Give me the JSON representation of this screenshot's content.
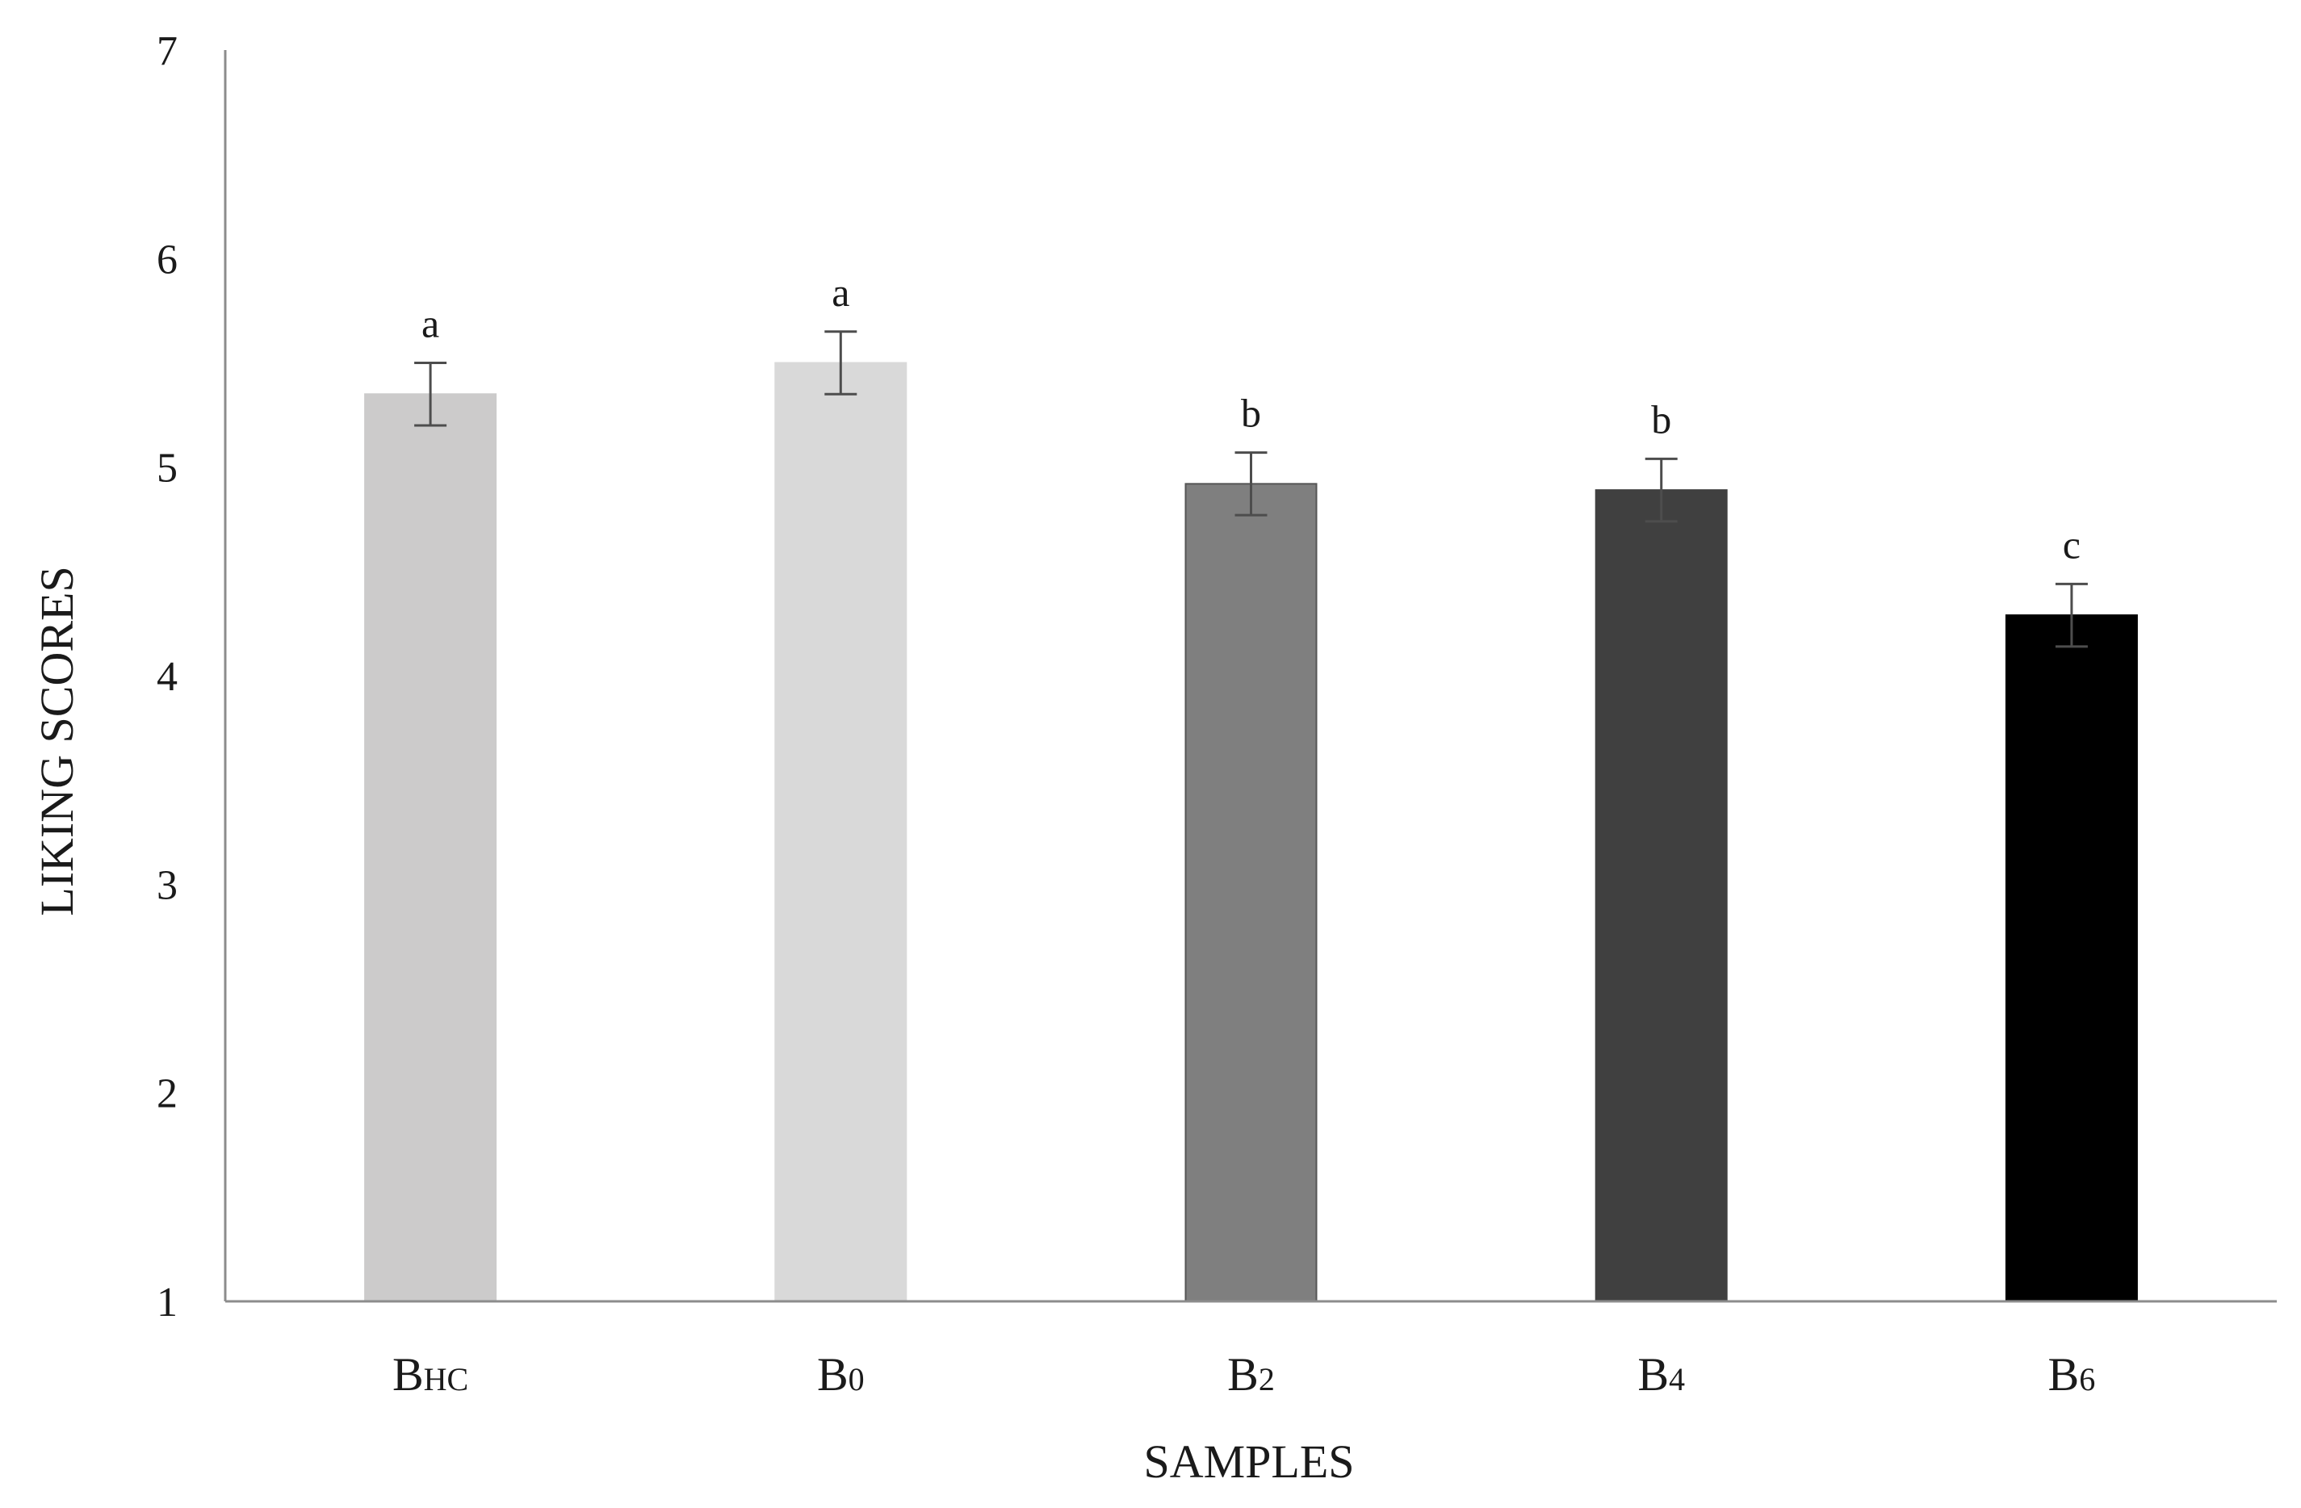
{
  "chart_data": {
    "type": "bar",
    "categories": [
      {
        "main": "B",
        "sub": "HC"
      },
      {
        "main": "B",
        "sub": "0"
      },
      {
        "main": "B",
        "sub": "2"
      },
      {
        "main": "B",
        "sub": "4"
      },
      {
        "main": "B",
        "sub": "6"
      }
    ],
    "values": [
      5.35,
      5.5,
      4.92,
      4.89,
      4.29
    ],
    "errors": [
      0.15,
      0.15,
      0.15,
      0.15,
      0.15
    ],
    "significance": [
      "a",
      "a",
      "b",
      "b",
      "c"
    ],
    "colors": [
      "#cccbcb",
      "#d9d9d9",
      "#7f7f7f",
      "#404040",
      "#000000"
    ],
    "border_colors": [
      "#cccbcb",
      "#d9d9d9",
      "#555555",
      "#404040",
      "#000000"
    ],
    "xlabel": "SAMPLES",
    "ylabel": "LIKING SCORES",
    "ylim": [
      1,
      7
    ],
    "yticks": [
      1,
      2,
      3,
      4,
      5,
      6,
      7
    ],
    "grid": false,
    "legend": "none",
    "axis_color": "#8c8c8c",
    "errorbar_color": "#4d4d4d"
  }
}
